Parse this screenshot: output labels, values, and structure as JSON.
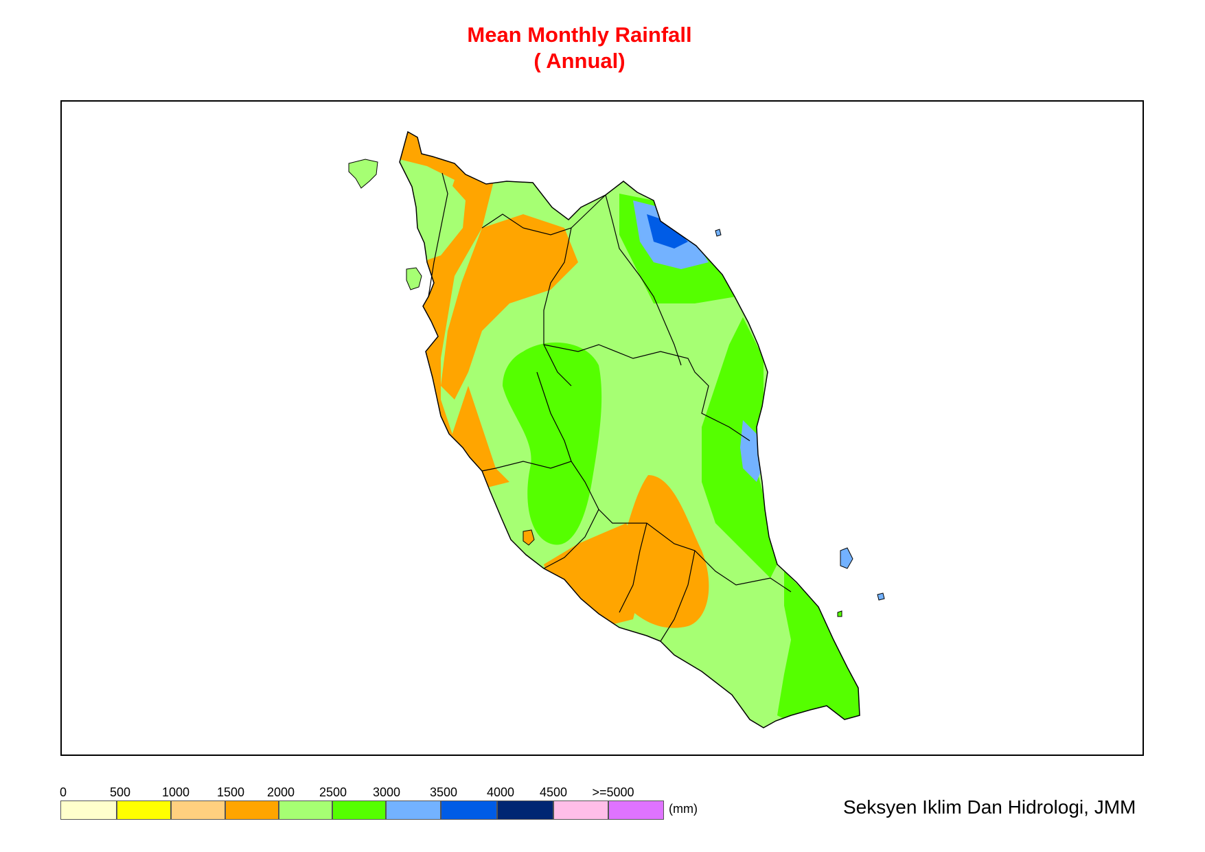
{
  "title": "Mean Monthly Rainfall",
  "subtitle": "( Annual)",
  "legend": {
    "unit": "(mm)",
    "ticks": [
      "0",
      "500",
      "1000",
      "1500",
      "2000",
      "2500",
      "3000",
      "3500",
      "4000",
      "4500",
      ">=5000"
    ],
    "colors": [
      "#ffffcc",
      "#ffff00",
      "#ffd07f",
      "#ffa500",
      "#a6ff73",
      "#55ff00",
      "#73b2ff",
      "#005ce6",
      "#002673",
      "#ffbee8",
      "#df73ff"
    ]
  },
  "credit": "Seksyen Iklim Dan Hidrologi, JMM"
}
